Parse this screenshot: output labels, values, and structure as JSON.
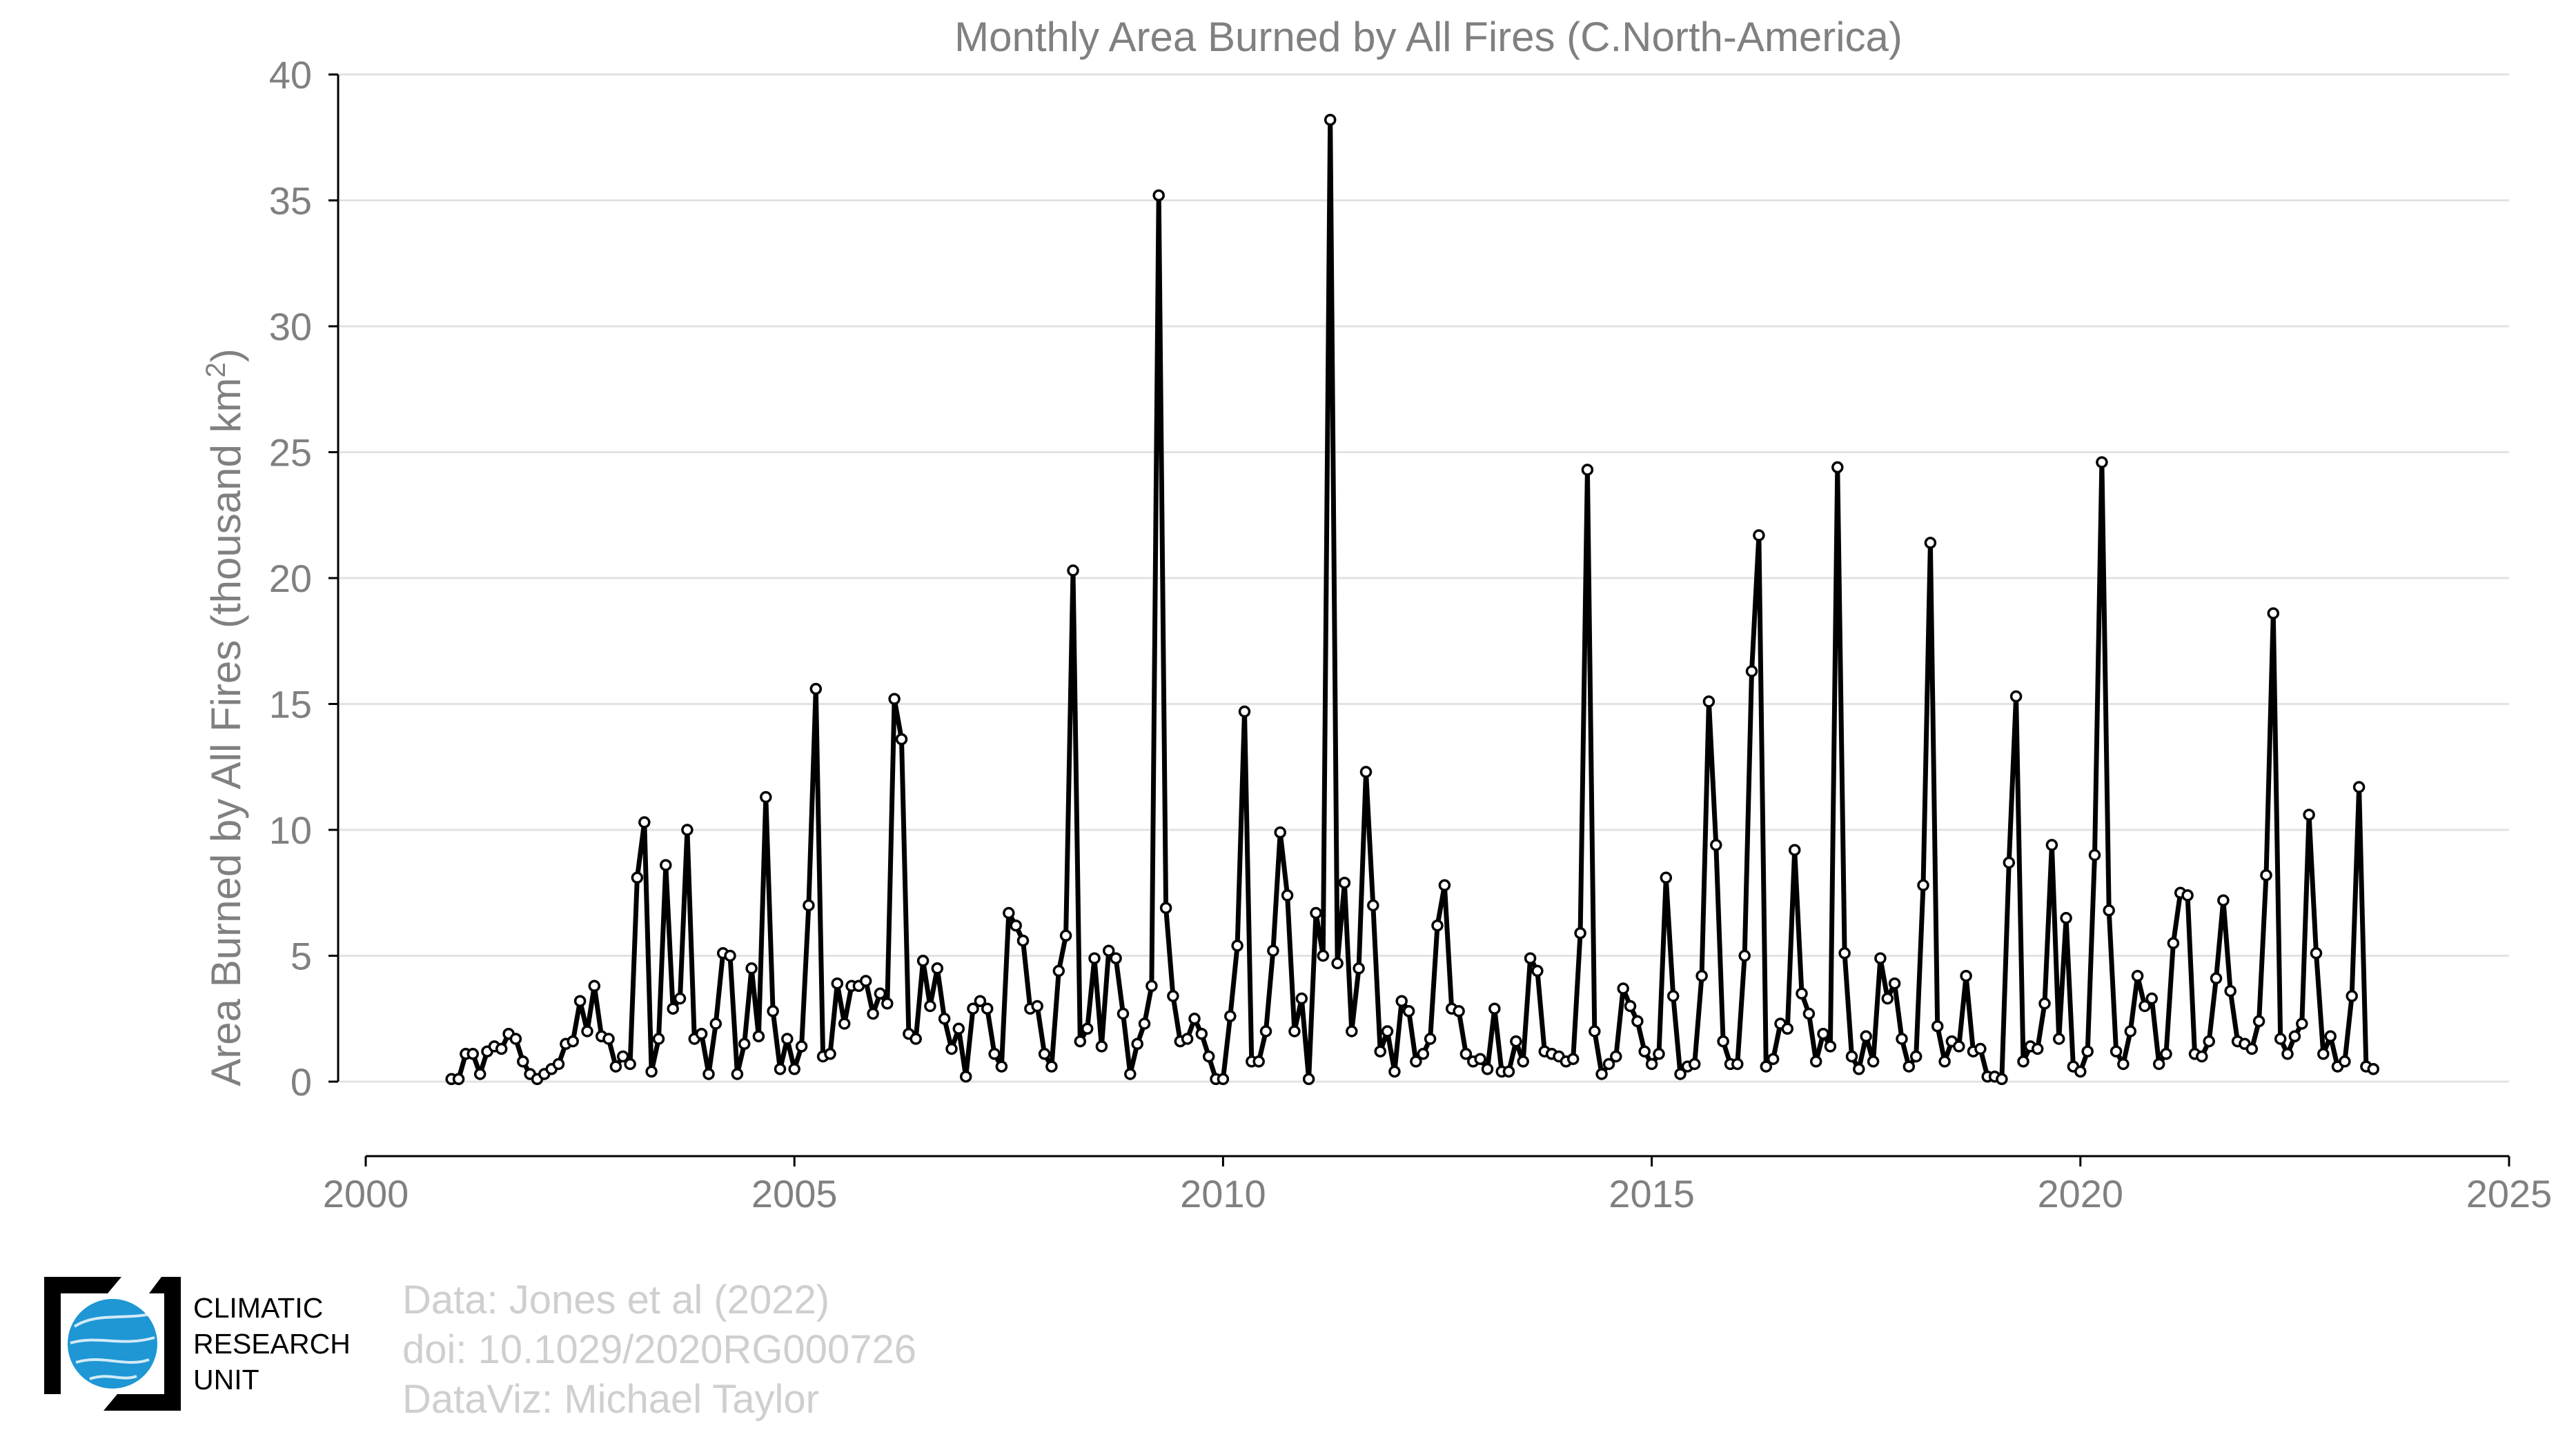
{
  "chart_data": {
    "type": "line",
    "title": "Monthly Area Burned by All Fires (C.North-America)",
    "ylabel": "Area Burned by All Fires (thousand km",
    "ylabel_sup": "2",
    "ylabel_close": ")",
    "xlim": [
      2000,
      2025
    ],
    "ylim": [
      -3,
      40
    ],
    "x_ticks": [
      2000,
      2005,
      2010,
      2015,
      2020,
      2025
    ],
    "y_ticks": [
      0,
      5,
      10,
      15,
      20,
      25,
      30,
      35,
      40
    ],
    "grid": "horizontal",
    "marker": "open-circle",
    "series": [
      {
        "start_year": 2001,
        "start_month": 1,
        "values": [
          0.1,
          0.1,
          1.1,
          1.1,
          0.3,
          1.2,
          1.4,
          1.3,
          1.9,
          1.7,
          0.8,
          0.3,
          0.1,
          0.3,
          0.5,
          0.7,
          1.5,
          1.6,
          3.2,
          2.0,
          3.8,
          1.8,
          1.7,
          0.6,
          1.0,
          0.7,
          8.1,
          10.3,
          0.4,
          1.7,
          8.6,
          2.9,
          3.3,
          10.0,
          1.7,
          1.9,
          0.3,
          2.3,
          5.1,
          5.0,
          0.3,
          1.5,
          4.5,
          1.8,
          11.3,
          2.8,
          0.5,
          1.7,
          0.5,
          1.4,
          7.0,
          15.6,
          1.0,
          1.1,
          3.9,
          2.3,
          3.8,
          3.8,
          4.0,
          2.7,
          3.5,
          3.1,
          15.2,
          13.6,
          1.9,
          1.7,
          4.8,
          3.0,
          4.5,
          2.5,
          1.3,
          2.1,
          0.2,
          2.9,
          3.2,
          2.9,
          1.1,
          0.6,
          6.7,
          6.2,
          5.6,
          2.9,
          3.0,
          1.1,
          0.6,
          4.4,
          5.8,
          20.3,
          1.6,
          2.1,
          4.9,
          1.4,
          5.2,
          4.9,
          2.7,
          0.3,
          1.5,
          2.3,
          3.8,
          35.2,
          6.9,
          3.4,
          1.6,
          1.7,
          2.5,
          1.9,
          1.0,
          0.1,
          0.1,
          2.6,
          5.4,
          14.7,
          0.8,
          0.8,
          2.0,
          5.2,
          9.9,
          7.4,
          2.0,
          3.3,
          0.1,
          6.7,
          5.0,
          38.2,
          4.7,
          7.9,
          2.0,
          4.5,
          12.3,
          7.0,
          1.2,
          2.0,
          0.4,
          3.2,
          2.8,
          0.8,
          1.1,
          1.7,
          6.2,
          7.8,
          2.9,
          2.8,
          1.1,
          0.8,
          0.9,
          0.5,
          2.9,
          0.4,
          0.4,
          1.6,
          0.8,
          4.9,
          4.4,
          1.2,
          1.1,
          1.0,
          0.8,
          0.9,
          5.9,
          24.3,
          2.0,
          0.3,
          0.7,
          1.0,
          3.7,
          3.0,
          2.4,
          1.2,
          0.7,
          1.1,
          8.1,
          3.4,
          0.3,
          0.6,
          0.7,
          4.2,
          15.1,
          9.4,
          1.6,
          0.7,
          0.7,
          5.0,
          16.3,
          21.7,
          0.6,
          0.9,
          2.3,
          2.1,
          9.2,
          3.5,
          2.7,
          0.8,
          1.9,
          1.4,
          24.4,
          5.1,
          1.0,
          0.5,
          1.8,
          0.8,
          4.9,
          3.3,
          3.9,
          1.7,
          0.6,
          1.0,
          7.8,
          21.4,
          2.2,
          0.8,
          1.6,
          1.4,
          4.2,
          1.2,
          1.3,
          0.2,
          0.2,
          0.1,
          8.7,
          15.3,
          0.8,
          1.4,
          1.3,
          3.1,
          9.4,
          1.7,
          6.5,
          0.6,
          0.4,
          1.2,
          9.0,
          24.6,
          6.8,
          1.2,
          0.7,
          2.0,
          4.2,
          3.0,
          3.3,
          0.7,
          1.1,
          5.5,
          7.5,
          7.4,
          1.1,
          1.0,
          1.6,
          4.1,
          7.2,
          3.6,
          1.6,
          1.5,
          1.3,
          2.4,
          8.2,
          18.6,
          1.7,
          1.1,
          1.8,
          2.3,
          10.6,
          5.1,
          1.1,
          1.8,
          0.6,
          0.8,
          3.4,
          11.7,
          0.6,
          0.5
        ]
      }
    ]
  },
  "credits": [
    "Data: Jones et al (2022)",
    "doi: 10.1029/2020RG000726",
    "DataViz: Michael Taylor"
  ],
  "logo": {
    "lines": [
      "CLIMATIC",
      "RESEARCH",
      "UNIT"
    ],
    "globe_color": "#1e97d4"
  }
}
